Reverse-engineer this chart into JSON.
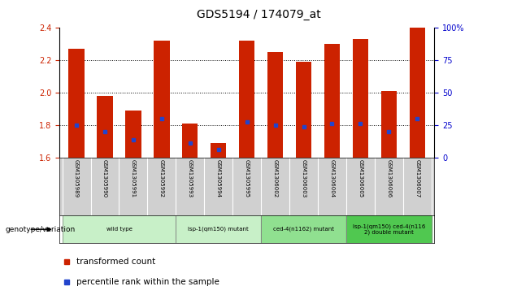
{
  "title": "GDS5194 / 174079_at",
  "samples": [
    "GSM1305989",
    "GSM1305990",
    "GSM1305991",
    "GSM1305992",
    "GSM1305993",
    "GSM1305994",
    "GSM1305995",
    "GSM1306002",
    "GSM1306003",
    "GSM1306004",
    "GSM1306005",
    "GSM1306006",
    "GSM1306007"
  ],
  "red_values": [
    2.27,
    1.98,
    1.89,
    2.32,
    1.81,
    1.69,
    2.32,
    2.25,
    2.19,
    2.3,
    2.33,
    2.01,
    2.4
  ],
  "blue_values": [
    1.8,
    1.76,
    1.71,
    1.84,
    1.69,
    1.65,
    1.82,
    1.8,
    1.79,
    1.81,
    1.81,
    1.76,
    1.84
  ],
  "ylim_left": [
    1.6,
    2.4
  ],
  "ylim_right": [
    0,
    100
  ],
  "yticks_left": [
    1.6,
    1.8,
    2.0,
    2.2,
    2.4
  ],
  "yticks_right": [
    0,
    25,
    50,
    75,
    100
  ],
  "ytick_labels_right": [
    "0",
    "25",
    "50",
    "75",
    "100%"
  ],
  "grid_lines": [
    1.8,
    2.0,
    2.2
  ],
  "groups": [
    {
      "label": "wild type",
      "indices": [
        0,
        1,
        2,
        3
      ],
      "color": "#c8f0c8"
    },
    {
      "label": "lsp-1(qm150) mutant",
      "indices": [
        4,
        5,
        6
      ],
      "color": "#c8f0c8"
    },
    {
      "label": "ced-4(n1162) mutant",
      "indices": [
        7,
        8,
        9
      ],
      "color": "#90e090"
    },
    {
      "label": "lsp-1(qm150) ced-4(n116\n2) double mutant",
      "indices": [
        10,
        11,
        12
      ],
      "color": "#50c850"
    }
  ],
  "bar_width": 0.55,
  "bar_color": "#cc2200",
  "blue_color": "#2244cc",
  "base_value": 1.6,
  "legend_red": "transformed count",
  "legend_blue": "percentile rank within the sample",
  "genotype_label": "genotype/variation",
  "bg_color": "#ffffff",
  "plot_bg": "#ffffff",
  "tick_color_left": "#cc2200",
  "tick_color_right": "#0000cc",
  "samp_bg": "#d0d0d0",
  "title_fontsize": 10,
  "axis_fontsize": 7,
  "label_fontsize": 6.5,
  "legend_fontsize": 7.5
}
